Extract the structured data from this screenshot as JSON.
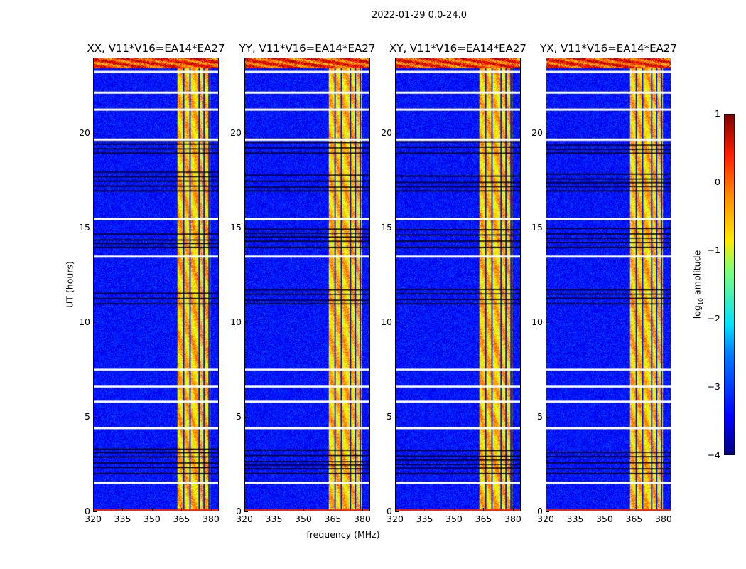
{
  "figure_title": "2022-01-29 0.0-24.0",
  "chart_data": {
    "type": "heatmap",
    "title": "2022-01-29 0.0-24.0",
    "xlabel": "frequency (MHz)",
    "ylabel": "UT (hours)",
    "xlim": [
      320,
      384
    ],
    "ylim": [
      0,
      24
    ],
    "xticks": [
      "320",
      "335",
      "350",
      "365",
      "380"
    ],
    "xtick_values": [
      320,
      335,
      350,
      365,
      380
    ],
    "yticks": [
      "0",
      "5",
      "10",
      "15",
      "20"
    ],
    "ytick_values": [
      0,
      5,
      10,
      15,
      20
    ],
    "panels": [
      {
        "title": "XX, V11*V16=EA14*EA27"
      },
      {
        "title": "YY, V11*V16=EA14*EA27"
      },
      {
        "title": "XY, V11*V16=EA14*EA27"
      },
      {
        "title": "YX, V11*V16=EA14*EA27"
      }
    ],
    "features": {
      "background_log10_amplitude": -3.3,
      "rfi_band_mhz": [
        363,
        380
      ],
      "rfi_band_log10_amplitude": -0.6,
      "band_gap_lines_mhz": [
        366,
        369.5,
        374,
        376.5,
        379
      ],
      "flagged_white_rows_hours": [
        1.5,
        4.4,
        5.8,
        6.6,
        7.5,
        13.5,
        15.5,
        19.7,
        21.3,
        22.2,
        23.3
      ],
      "flagged_black_ranges_hours": [
        [
          2.0,
          3.3
        ],
        [
          11.0,
          11.8
        ],
        [
          14.0,
          15.0
        ],
        [
          17.0,
          18.0
        ],
        [
          19.0,
          19.8
        ]
      ],
      "high_amplitude_top_hours": [
        23.5,
        24
      ]
    },
    "colorbar": {
      "label": "log10 amplitude",
      "label_base": "log",
      "label_sub": "10",
      "label_rest": " amplitude",
      "range": [
        -4,
        1
      ],
      "ticks": [
        "1",
        "0",
        "−1",
        "−2",
        "−3",
        "−4"
      ],
      "tick_values": [
        1,
        0,
        -1,
        -2,
        -3,
        -4
      ],
      "colormap": "jet"
    }
  }
}
